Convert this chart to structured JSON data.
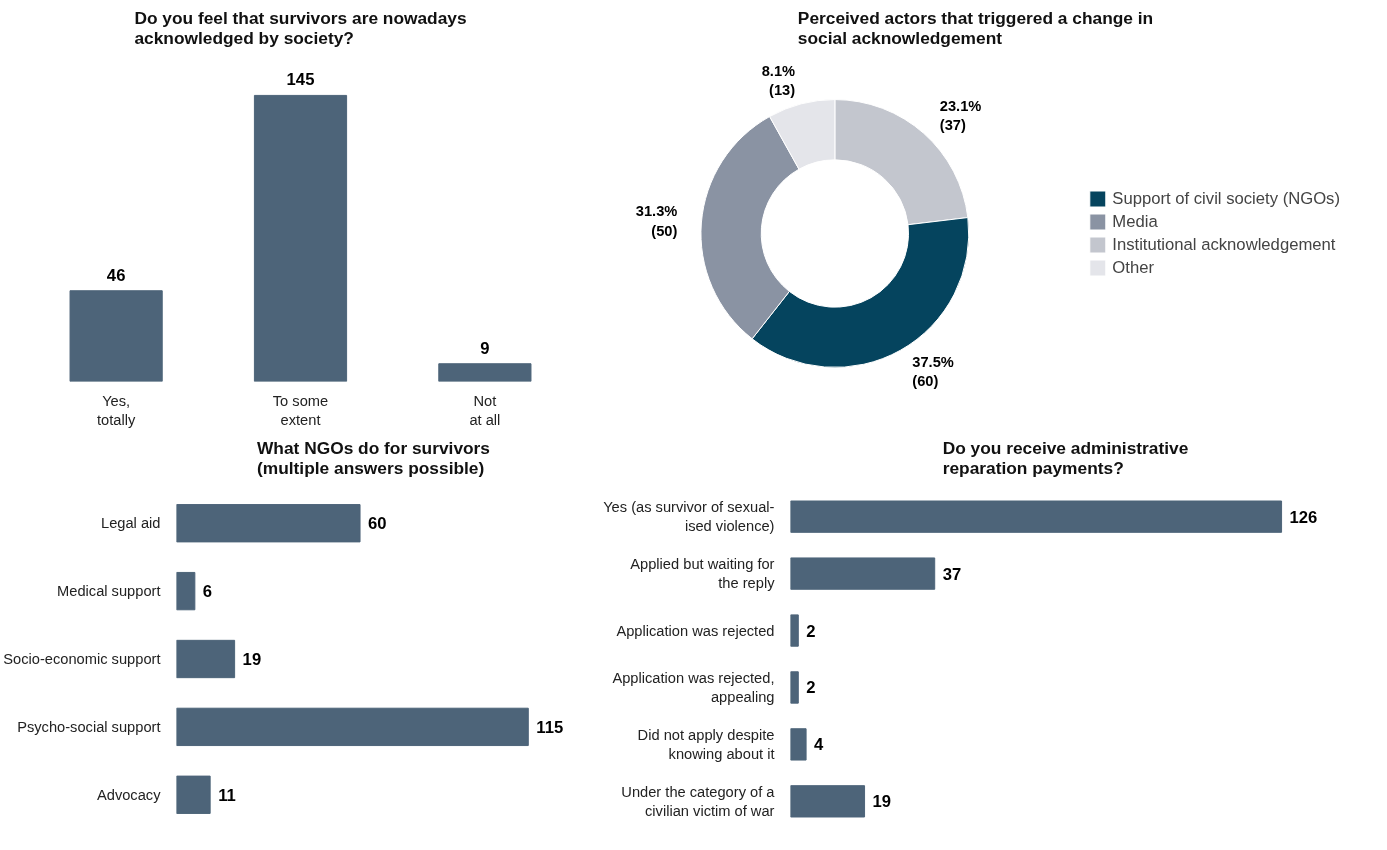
{
  "chart_data": [
    {
      "type": "bar",
      "title": "Do you feel that survivors are nowadays\nacknowledged by society?",
      "categories": [
        "Yes,\ntotally",
        "To some\nextent",
        "Not\nat all"
      ],
      "values": [
        46,
        145,
        9
      ],
      "color": "#4d6479",
      "data_labels": true,
      "grid": false
    },
    {
      "type": "donut",
      "title": "Perceived actors that triggered a change in\nsocial acknowledgement",
      "categories": [
        "Institutional acknowledgement",
        "Support of civil society (NGOs)",
        "Media",
        "Other"
      ],
      "values": [
        23.1,
        37.5,
        31.3,
        8.1
      ],
      "colors": [
        "#c3c6ce",
        "#05445e",
        "#8a93a3",
        "#e4e5ea"
      ],
      "value_labels": [
        "23.1%\n(37)",
        "37.5%\n(60)",
        "31.3%\n(50)",
        "8.1%\n(13)"
      ],
      "legend": "right"
    },
    {
      "type": "bar",
      "orientation": "horizontal",
      "title": "What NGOs do for survivors\n(multiple answers possible)",
      "categories": [
        "Legal aid",
        "Medical support",
        "Socio-economic support",
        "Psycho-social support",
        "Advocacy"
      ],
      "values": [
        60,
        6,
        19,
        115,
        11
      ],
      "color": "#4d6479",
      "data_labels": true,
      "grid": false
    },
    {
      "type": "bar",
      "orientation": "horizontal",
      "title": "Do you receive administrative\nreparation payments?",
      "categories": [
        "Yes (as survivor of sexual-\nised violence)",
        "Applied but waiting for\nthe reply",
        "Application was rejected",
        "Application was rejected,\nappealing",
        "Did not apply despite\nknowing about it",
        "Under the category of a\ncivilian victim of war"
      ],
      "values": [
        126,
        37,
        2,
        2,
        4,
        19
      ],
      "color": "#4d6479",
      "data_labels": true,
      "grid": false
    }
  ]
}
